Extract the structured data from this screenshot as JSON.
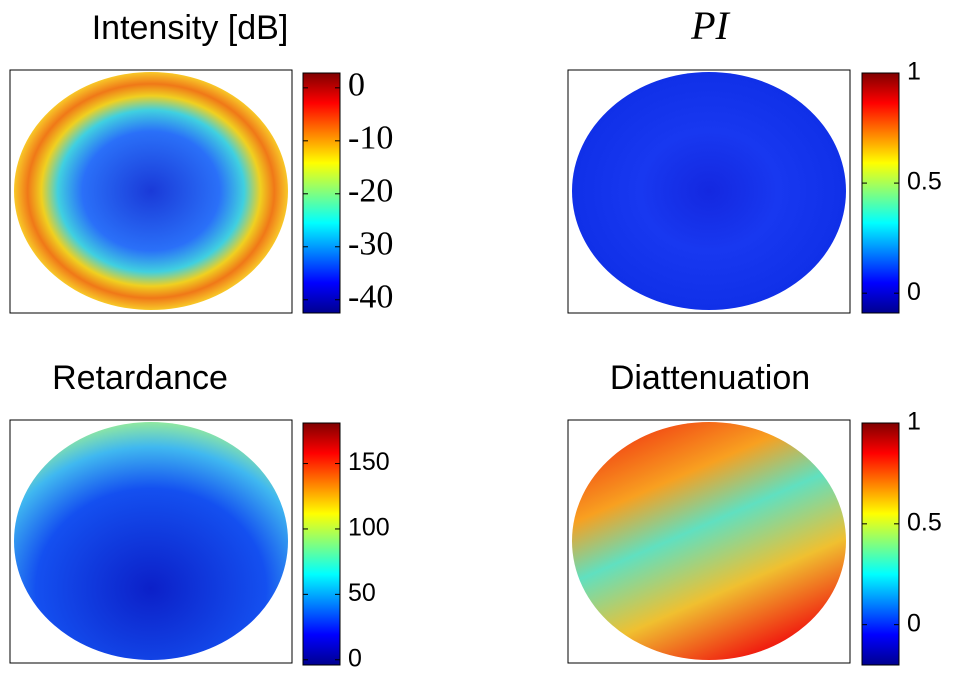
{
  "chart_data": [
    {
      "type": "heatmap",
      "title": "Intensity [dB]",
      "clim": [
        -42.5,
        2.8
      ],
      "ticks": [
        0,
        -10,
        -20,
        -30,
        -40
      ],
      "colormap": "jet"
    },
    {
      "type": "heatmap",
      "title": "PI",
      "clim": [
        -0.09,
        1
      ],
      "ticks": [
        1,
        0.5,
        0
      ],
      "colormap": "jet"
    },
    {
      "type": "heatmap",
      "title": "Retardance",
      "clim": [
        -4,
        181
      ],
      "ticks": [
        150,
        100,
        50,
        0
      ],
      "colormap": "jet"
    },
    {
      "type": "heatmap",
      "title": "Diattenuation",
      "clim": [
        -0.2,
        1
      ],
      "ticks": [
        1,
        0.5,
        0
      ],
      "colormap": "jet"
    }
  ]
}
